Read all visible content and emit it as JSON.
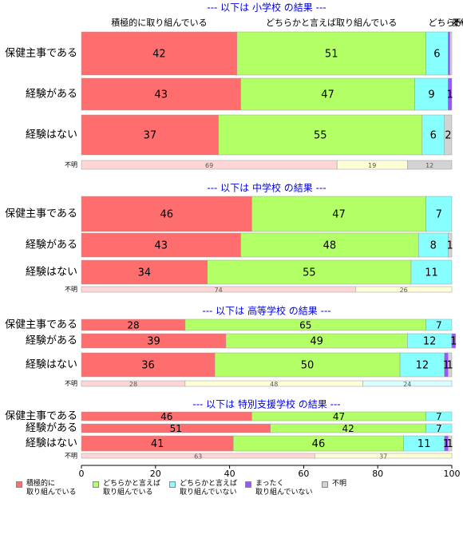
{
  "legend": [
    {
      "name": "積極的に\n取り組んでいる",
      "color": "#ff6e6e"
    },
    {
      "name": "どちらかと言えば\n取り組んでいる",
      "color": "#b3ff66"
    },
    {
      "name": "どちらかと言えば\n取り組んでいない",
      "color": "#88ffff"
    },
    {
      "name": "まったく\n取り組んでいない",
      "color": "#9b55ff"
    },
    {
      "name": "不明",
      "color": "#d3d3d3"
    }
  ],
  "chart_data": [
    {
      "type": "bar",
      "title": "--- 以下は 小学校 の結果 ---",
      "column_headers": [
        "積極的に取り組んでいる",
        "どちらかと言えば取り組んでいる",
        "どちらかと言えば取り組んでいない",
        "まったく取り組んでいない",
        "不明"
      ],
      "categories": [
        "保健主事である",
        "経験がある",
        "経験はない"
      ],
      "series": [
        {
          "values": [
            42,
            43,
            37
          ]
        },
        {
          "values": [
            51,
            47,
            55
          ]
        },
        {
          "values": [
            6,
            9,
            6
          ]
        },
        {
          "values": [
            0.5,
            1,
            0
          ]
        },
        {
          "values": [
            0.5,
            0,
            2
          ]
        }
      ],
      "unknown": {
        "label": "不明",
        "values": [
          69,
          19,
          12
        ],
        "colors": [
          "#ffd6d6",
          "#ffffd6",
          "#d3d3d3"
        ]
      },
      "xlim": [
        0,
        100
      ]
    },
    {
      "type": "bar",
      "title": "--- 以下は 中学校 の結果 ---",
      "categories": [
        "保健主事である",
        "経験がある",
        "経験はない"
      ],
      "series": [
        {
          "values": [
            46,
            43,
            34
          ]
        },
        {
          "values": [
            47,
            48,
            55
          ]
        },
        {
          "values": [
            7,
            8,
            11
          ]
        },
        {
          "values": [
            0,
            0,
            0
          ]
        },
        {
          "values": [
            0,
            1,
            0
          ]
        }
      ],
      "unknown": {
        "label": "不明",
        "values": [
          74,
          26
        ],
        "colors": [
          "#ffd6d6",
          "#ffffd6"
        ]
      },
      "xlim": [
        0,
        100
      ]
    },
    {
      "type": "bar",
      "title": "--- 以下は 高等学校 の結果 ---",
      "categories": [
        "保健主事である",
        "経験がある",
        "経験はない"
      ],
      "series": [
        {
          "values": [
            28,
            39,
            36
          ]
        },
        {
          "values": [
            65,
            49,
            50
          ]
        },
        {
          "values": [
            7,
            12,
            12
          ]
        },
        {
          "values": [
            0,
            1,
            1
          ]
        },
        {
          "values": [
            0,
            0,
            1
          ]
        }
      ],
      "unknown": {
        "label": "不明",
        "values": [
          28,
          48,
          24
        ],
        "colors": [
          "#ffd6d6",
          "#ffffd6",
          "#d6ffff"
        ]
      },
      "xlim": [
        0,
        100
      ]
    },
    {
      "type": "bar",
      "title": "--- 以下は 特別支援学校 の結果 ---",
      "categories": [
        "保健主事である",
        "経験がある",
        "経験はない"
      ],
      "series": [
        {
          "values": [
            46,
            51,
            41
          ]
        },
        {
          "values": [
            47,
            42,
            46
          ]
        },
        {
          "values": [
            7,
            7,
            11
          ]
        },
        {
          "values": [
            0,
            0,
            1
          ]
        },
        {
          "values": [
            0,
            0,
            1
          ]
        }
      ],
      "unknown": {
        "label": "不明",
        "values": [
          63,
          37
        ],
        "colors": [
          "#ffd6d6",
          "#ffffd6"
        ]
      },
      "xlim": [
        0,
        100
      ],
      "xticks": [
        0,
        20,
        40,
        60,
        80,
        100
      ]
    }
  ]
}
